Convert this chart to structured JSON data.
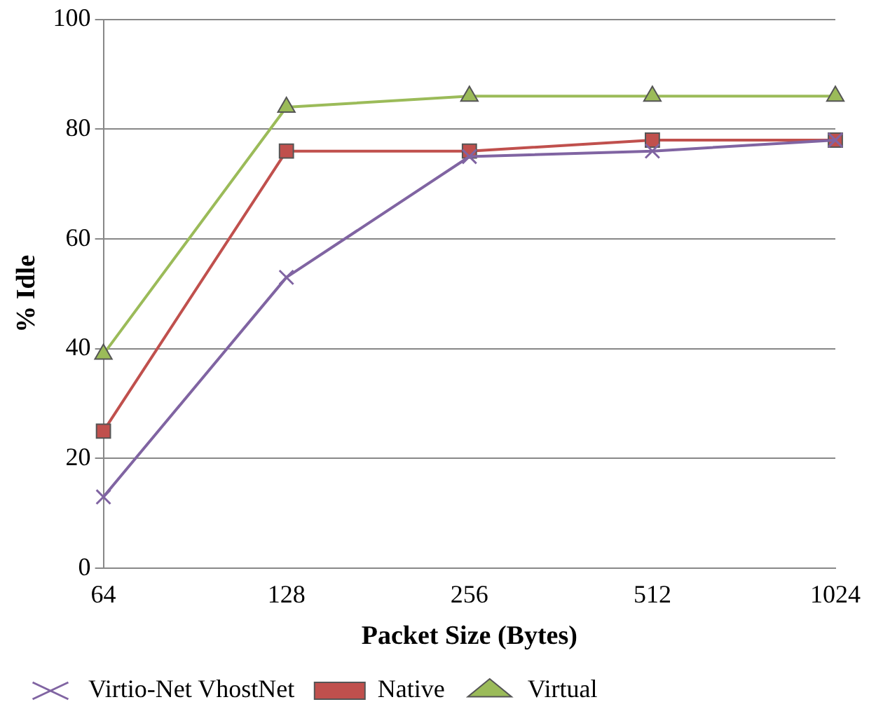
{
  "chart_data": {
    "type": "line",
    "xlabel": "Packet Size (Bytes)",
    "ylabel": "% Idle",
    "categories": [
      "64",
      "128",
      "256",
      "512",
      "1024"
    ],
    "ylim": [
      0,
      100
    ],
    "yticks": [
      0,
      20,
      40,
      60,
      80,
      100
    ],
    "grid": "y",
    "legend": "bottom",
    "line_style": "solid",
    "series": [
      {
        "name": "Virtio-Net VhostNet",
        "color": "#8064a2",
        "marker": "cross",
        "values": [
          13,
          53,
          75,
          76,
          78
        ]
      },
      {
        "name": "Native",
        "color": "#c0504d",
        "marker": "square",
        "values": [
          25,
          76,
          76,
          78,
          78
        ]
      },
      {
        "name": "Virtual",
        "color": "#9bbb59",
        "marker": "triangle",
        "values": [
          39,
          84,
          86,
          86,
          86
        ]
      }
    ]
  }
}
